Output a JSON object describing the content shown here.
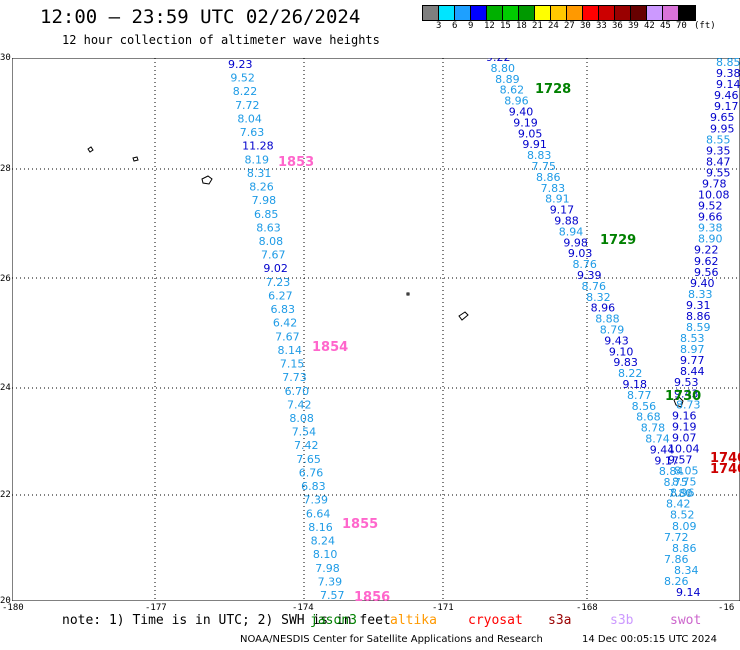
{
  "header": {
    "title": "12:00 — 23:59 UTC 02/26/2024",
    "subtitle": "12 hour collection of altimeter wave heights"
  },
  "colorbar": {
    "colors": [
      "#7f7f7f",
      "#00e5ff",
      "#1ea0ff",
      "#0000ff",
      "#00b000",
      "#00cc00",
      "#009900",
      "#ffff00",
      "#ffc800",
      "#ff9900",
      "#ff0000",
      "#cc0000",
      "#990000",
      "#660000",
      "#cc99ff",
      "#d973d9",
      "#000000"
    ],
    "ticks": [
      "3",
      "6",
      "9",
      "12",
      "15",
      "18",
      "21",
      "24",
      "27",
      "30",
      "33",
      "36",
      "39",
      "42",
      "45",
      "70",
      "(ft)"
    ]
  },
  "axes": {
    "lat_labels": [
      "30",
      "28",
      "26",
      "24",
      "22",
      "20"
    ],
    "lon_labels": [
      "-180",
      "-177",
      "-174",
      "-171",
      "-168",
      "-16"
    ]
  },
  "track_labels": [
    {
      "text": "1728",
      "color": "#008000"
    },
    {
      "text": "1729",
      "color": "#008000"
    },
    {
      "text": "1730",
      "color": "#008000"
    },
    {
      "text": "1740",
      "color": "#cc0000"
    },
    {
      "text": "1740",
      "color": "#cc0000"
    },
    {
      "text": "1853",
      "color": "#ff66cc"
    },
    {
      "text": "1854",
      "color": "#ff66cc"
    },
    {
      "text": "1855",
      "color": "#ff66cc"
    },
    {
      "text": "1856",
      "color": "#ff66cc"
    }
  ],
  "track_left": {
    "values": [
      "9.23",
      "9.52",
      "8.22",
      "7.72",
      "8.04",
      "7.63",
      "11.28",
      "8.19",
      "8.31",
      "8.26",
      "7.98",
      "6.85",
      "8.63",
      "8.08",
      "7.67",
      "9.02",
      "7.23",
      "6.27",
      "6.83",
      "6.42",
      "7.67",
      "8.14",
      "7.15",
      "7.73",
      "6.70",
      "7.42",
      "8.08",
      "7.54",
      "7.42",
      "7.65",
      "6.76",
      "6.83",
      "7.39",
      "6.64",
      "8.16",
      "8.24",
      "8.10",
      "7.98",
      "7.39",
      "7.57"
    ],
    "colors": [
      "#0000cc",
      "#1e9be6",
      "#1e9be6",
      "#1e9be6",
      "#1e9be6",
      "#1e9be6",
      "#0000cc",
      "#1e9be6",
      "#1e9be6",
      "#1e9be6",
      "#1e9be6",
      "#1e9be6",
      "#1e9be6",
      "#1e9be6",
      "#1e9be6",
      "#0000cc",
      "#1e9be6",
      "#1e9be6",
      "#1e9be6",
      "#1e9be6",
      "#1e9be6",
      "#1e9be6",
      "#1e9be6",
      "#1e9be6",
      "#1e9be6",
      "#1e9be6",
      "#1e9be6",
      "#1e9be6",
      "#1e9be6",
      "#1e9be6",
      "#1e9be6",
      "#1e9be6",
      "#1e9be6",
      "#1e9be6",
      "#1e9be6",
      "#1e9be6",
      "#1e9be6",
      "#1e9be6",
      "#1e9be6",
      "#1e9be6"
    ]
  },
  "track_mid": {
    "values": [
      "9.22",
      "8.80",
      "8.89",
      "8.62",
      "8.96",
      "9.40",
      "9.19",
      "9.05",
      "9.91",
      "8.83",
      "7.75",
      "8.86",
      "7.83",
      "8.91",
      "9.17",
      "9.88",
      "8.94",
      "9.98",
      "9.03",
      "8.76",
      "9.39",
      "8.76",
      "8.32",
      "8.96",
      "8.88",
      "8.79",
      "9.43",
      "9.10",
      "9.83",
      "8.22",
      "9.18",
      "8.77",
      "8.56",
      "8.68",
      "8.78",
      "8.74",
      "9.44",
      "9.17",
      "8.84",
      "8.75",
      "7.80"
    ],
    "colors": [
      "#0000cc",
      "#1e9be6",
      "#1e9be6",
      "#1e9be6",
      "#1e9be6",
      "#0000cc",
      "#0000cc",
      "#0000cc",
      "#0000cc",
      "#1e9be6",
      "#1e9be6",
      "#1e9be6",
      "#1e9be6",
      "#1e9be6",
      "#0000cc",
      "#0000cc",
      "#1e9be6",
      "#0000cc",
      "#0000cc",
      "#1e9be6",
      "#0000cc",
      "#1e9be6",
      "#1e9be6",
      "#0000cc",
      "#1e9be6",
      "#1e9be6",
      "#0000cc",
      "#0000cc",
      "#0000cc",
      "#1e9be6",
      "#0000cc",
      "#1e9be6",
      "#1e9be6",
      "#1e9be6",
      "#1e9be6",
      "#1e9be6",
      "#0000cc",
      "#0000cc",
      "#1e9be6",
      "#1e9be6",
      "#1e9be6"
    ]
  },
  "track_right": {
    "values": [
      "8.85",
      "9.38",
      "9.14",
      "9.46",
      "9.17",
      "9.65",
      "9.95",
      "8.55",
      "9.35",
      "8.47",
      "9.55",
      "9.78",
      "10.08",
      "9.52",
      "9.66",
      "9.38",
      "8.90",
      "9.22",
      "9.62",
      "9.56",
      "9.40",
      "8.33",
      "9.31",
      "8.86",
      "8.59",
      "8.53",
      "8.97",
      "9.77",
      "8.44",
      "9.53",
      "9.43",
      "8.73",
      "9.16",
      "9.19",
      "9.07",
      "10.04",
      "9.57",
      "8.05",
      "8.75",
      "8.96",
      "8.42",
      "8.52",
      "8.09",
      "7.72",
      "8.86",
      "7.86",
      "8.34",
      "8.26",
      "9.14"
    ],
    "colors": [
      "#1e9be6",
      "#0000cc",
      "#0000cc",
      "#0000cc",
      "#0000cc",
      "#0000cc",
      "#0000cc",
      "#1e9be6",
      "#0000cc",
      "#0000cc",
      "#0000cc",
      "#0000cc",
      "#0000cc",
      "#0000cc",
      "#0000cc",
      "#1e9be6",
      "#1e9be6",
      "#0000cc",
      "#0000cc",
      "#0000cc",
      "#0000cc",
      "#1e9be6",
      "#0000cc",
      "#0000cc",
      "#1e9be6",
      "#1e9be6",
      "#1e9be6",
      "#0000cc",
      "#0000cc",
      "#0000cc",
      "#0000cc",
      "#1e9be6",
      "#0000cc",
      "#0000cc",
      "#0000cc",
      "#0000cc",
      "#0000cc",
      "#1e9be6",
      "#1e9be6",
      "#1e9be6",
      "#1e9be6",
      "#1e9be6",
      "#1e9be6",
      "#1e9be6",
      "#1e9be6",
      "#1e9be6",
      "#1e9be6",
      "#1e9be6",
      "#0000cc"
    ]
  },
  "footer": {
    "note": "note: 1) Time is in UTC; 2) SWH is in feet",
    "legend": [
      {
        "text": "jason3",
        "color": "#008000"
      },
      {
        "text": "altika",
        "color": "#ff9900"
      },
      {
        "text": "cryosat",
        "color": "#ff0000"
      },
      {
        "text": "s3a",
        "color": "#990000"
      },
      {
        "text": "s3b",
        "color": "#cc99ff"
      },
      {
        "text": "swot",
        "color": "#cc66cc"
      }
    ],
    "credit": "NOAA/NESDIS Center for Satellite Applications and Research",
    "timestamp": "14 Dec 00:05:15 UTC 2024"
  }
}
